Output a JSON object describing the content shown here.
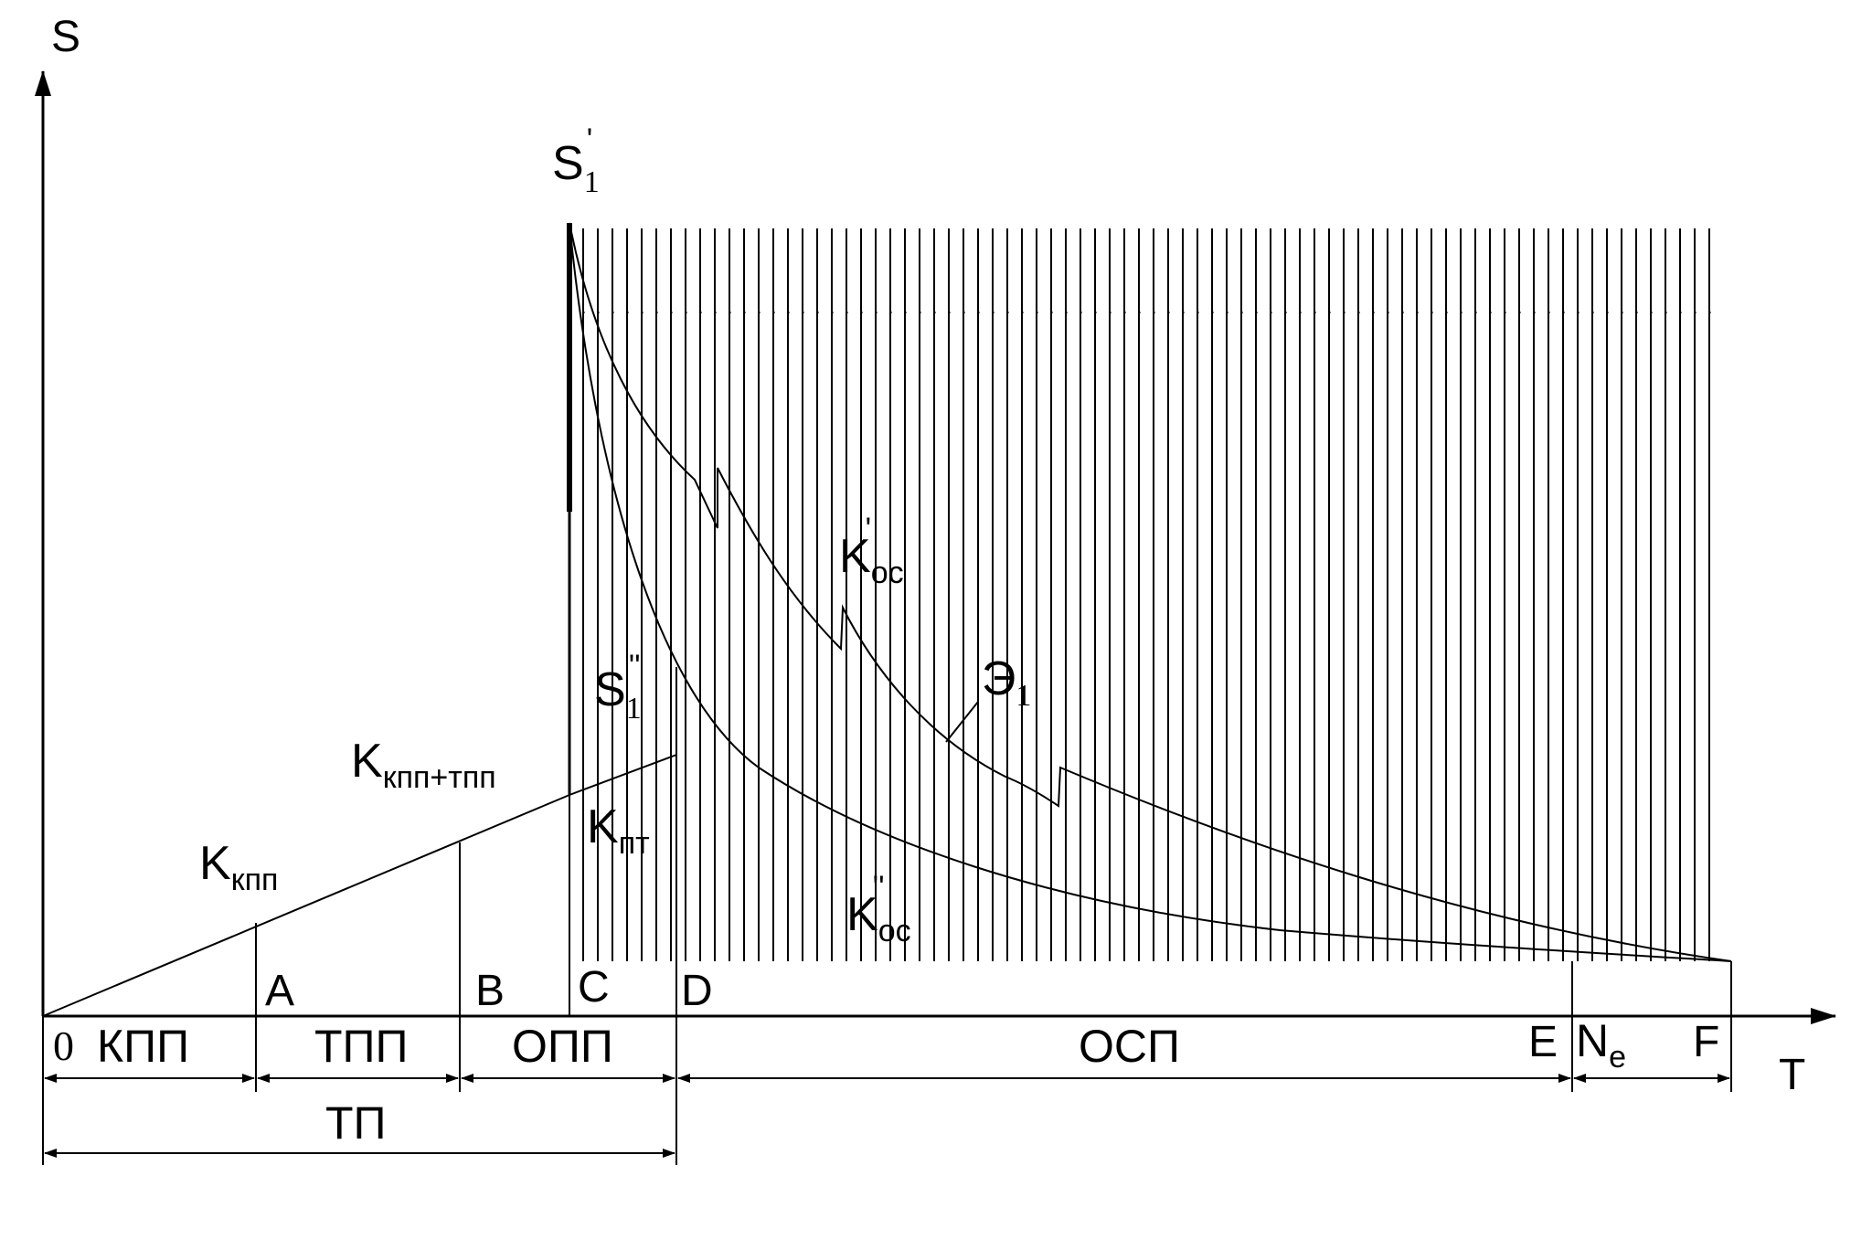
{
  "axes": {
    "y_label": "S",
    "x_label": "T"
  },
  "labels": {
    "s1_prime": {
      "base": "S",
      "sub": "1",
      "mark": "'"
    },
    "s1_dprime": {
      "base": "S",
      "sub": "1",
      "mark": "''"
    },
    "k_kpp": {
      "base": "K",
      "sub": "кпп"
    },
    "k_kpp_tpp": {
      "base": "K",
      "sub": "кпп+тпп"
    },
    "k_pt": {
      "base": "K",
      "sub": "пт"
    },
    "k_os_prime": {
      "base": "K",
      "sub": "ос",
      "mark": "'"
    },
    "k_os_dprime": {
      "base": "K",
      "sub": "ос",
      "mark": "''"
    },
    "e1": {
      "base": "Э",
      "sub": "1"
    }
  },
  "points": {
    "origin": "0",
    "A": "A",
    "B": "B",
    "C": "C",
    "D": "D",
    "E": "E",
    "F": "F"
  },
  "segments": {
    "kpp": "КПП",
    "tpp": "ТПП",
    "opp": "ОПП",
    "osp": "ОСП",
    "ne": {
      "base": "N",
      "sub": "e"
    },
    "tp": "ТП"
  },
  "colors": {
    "ink": "#000000",
    "background": "#ffffff"
  }
}
